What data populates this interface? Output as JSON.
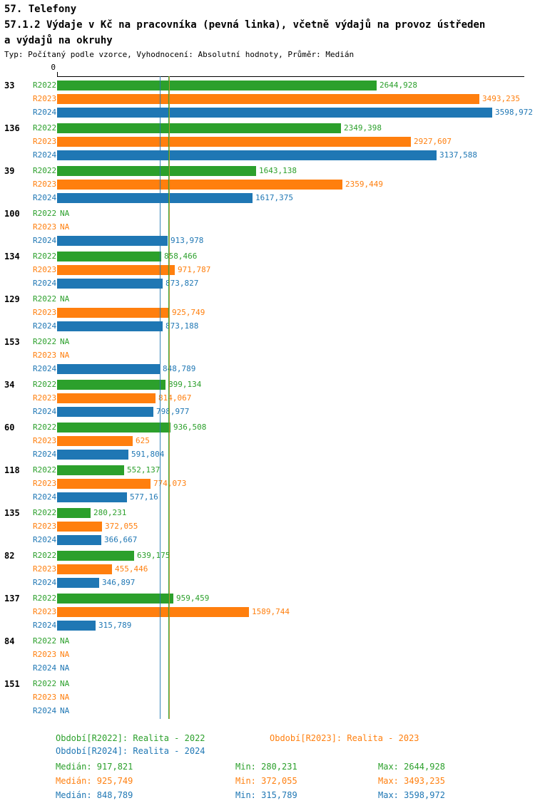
{
  "header": {
    "title": "57. Telefony",
    "subtitle_line1": "57.1.2 Výdaje v Kč na pracovníka (pevná linka), včetně výdajů na provoz ústředen",
    "subtitle_line2": "a výdajů na okruhy",
    "meta": "Typ: Počítaný podle vzorce, Vyhodnocení: Absolutní hodnoty, Průměr: Medián"
  },
  "chart_data": {
    "type": "bar",
    "orientation": "horizontal",
    "axis_zero_label": "0",
    "xmax": 3598.972,
    "series_names": [
      "R2022",
      "R2023",
      "R2024"
    ],
    "colors": {
      "R2022": "#2ca02c",
      "R2023": "#ff7f0e",
      "R2024": "#1f77b4"
    },
    "median_lines": [
      {
        "series": "R2024",
        "value": 848.789,
        "color": "#1f77b4"
      },
      {
        "series": "R2022",
        "value": 917.821,
        "color": "#2ca02c"
      },
      {
        "series": "R2023",
        "value": 925.749,
        "color": "#b5952b"
      }
    ],
    "groups": [
      {
        "id": "33",
        "bars": [
          {
            "series": "R2022",
            "value": 2644.928,
            "label": "2644,928"
          },
          {
            "series": "R2023",
            "value": 3493.235,
            "label": "3493,235"
          },
          {
            "series": "R2024",
            "value": 3598.972,
            "label": "3598,972"
          }
        ]
      },
      {
        "id": "136",
        "bars": [
          {
            "series": "R2022",
            "value": 2349.398,
            "label": "2349,398"
          },
          {
            "series": "R2023",
            "value": 2927.607,
            "label": "2927,607"
          },
          {
            "series": "R2024",
            "value": 3137.588,
            "label": "3137,588"
          }
        ]
      },
      {
        "id": "39",
        "bars": [
          {
            "series": "R2022",
            "value": 1643.138,
            "label": "1643,138"
          },
          {
            "series": "R2023",
            "value": 2359.449,
            "label": "2359,449"
          },
          {
            "series": "R2024",
            "value": 1617.375,
            "label": "1617,375"
          }
        ]
      },
      {
        "id": "100",
        "bars": [
          {
            "series": "R2022",
            "value": null,
            "label": "NA"
          },
          {
            "series": "R2023",
            "value": null,
            "label": "NA"
          },
          {
            "series": "R2024",
            "value": 913.978,
            "label": "913,978"
          }
        ]
      },
      {
        "id": "134",
        "bars": [
          {
            "series": "R2022",
            "value": 858.466,
            "label": "858,466"
          },
          {
            "series": "R2023",
            "value": 971.787,
            "label": "971,787"
          },
          {
            "series": "R2024",
            "value": 873.827,
            "label": "873,827"
          }
        ]
      },
      {
        "id": "129",
        "bars": [
          {
            "series": "R2022",
            "value": null,
            "label": "NA"
          },
          {
            "series": "R2023",
            "value": 925.749,
            "label": "925,749"
          },
          {
            "series": "R2024",
            "value": 873.188,
            "label": "873,188"
          }
        ]
      },
      {
        "id": "153",
        "bars": [
          {
            "series": "R2022",
            "value": null,
            "label": "NA"
          },
          {
            "series": "R2023",
            "value": null,
            "label": "NA"
          },
          {
            "series": "R2024",
            "value": 848.789,
            "label": "848,789"
          }
        ]
      },
      {
        "id": "34",
        "bars": [
          {
            "series": "R2022",
            "value": 899.134,
            "label": "899,134"
          },
          {
            "series": "R2023",
            "value": 814.067,
            "label": "814,067"
          },
          {
            "series": "R2024",
            "value": 798.977,
            "label": "798,977"
          }
        ]
      },
      {
        "id": "60",
        "bars": [
          {
            "series": "R2022",
            "value": 936.508,
            "label": "936,508"
          },
          {
            "series": "R2023",
            "value": 625,
            "label": "625"
          },
          {
            "series": "R2024",
            "value": 591.804,
            "label": "591,804"
          }
        ]
      },
      {
        "id": "118",
        "bars": [
          {
            "series": "R2022",
            "value": 552.137,
            "label": "552,137"
          },
          {
            "series": "R2023",
            "value": 774.073,
            "label": "774,073"
          },
          {
            "series": "R2024",
            "value": 577.16,
            "label": "577,16"
          }
        ]
      },
      {
        "id": "135",
        "bars": [
          {
            "series": "R2022",
            "value": 280.231,
            "label": "280,231"
          },
          {
            "series": "R2023",
            "value": 372.055,
            "label": "372,055"
          },
          {
            "series": "R2024",
            "value": 366.667,
            "label": "366,667"
          }
        ]
      },
      {
        "id": "82",
        "bars": [
          {
            "series": "R2022",
            "value": 639.175,
            "label": "639,175"
          },
          {
            "series": "R2023",
            "value": 455.446,
            "label": "455,446"
          },
          {
            "series": "R2024",
            "value": 346.897,
            "label": "346,897"
          }
        ]
      },
      {
        "id": "137",
        "bars": [
          {
            "series": "R2022",
            "value": 959.459,
            "label": "959,459"
          },
          {
            "series": "R2023",
            "value": 1589.744,
            "label": "1589,744"
          },
          {
            "series": "R2024",
            "value": 315.789,
            "label": "315,789"
          }
        ]
      },
      {
        "id": "84",
        "bars": [
          {
            "series": "R2022",
            "value": null,
            "label": "NA"
          },
          {
            "series": "R2023",
            "value": null,
            "label": "NA"
          },
          {
            "series": "R2024",
            "value": null,
            "label": "NA"
          }
        ]
      },
      {
        "id": "151",
        "bars": [
          {
            "series": "R2022",
            "value": null,
            "label": "NA"
          },
          {
            "series": "R2023",
            "value": null,
            "label": "NA"
          },
          {
            "series": "R2024",
            "value": null,
            "label": "NA"
          }
        ]
      }
    ]
  },
  "legend": {
    "items": [
      {
        "label": "Období[R2022]: Realita - 2022",
        "color": "#2ca02c"
      },
      {
        "label": "Období[R2023]: Realita - 2023",
        "color": "#ff7f0e"
      },
      {
        "label": "Období[R2024]: Realita - 2024",
        "color": "#1f77b4"
      }
    ]
  },
  "stats": {
    "rows": [
      {
        "median": "Medián: 917,821",
        "min": "Min: 280,231",
        "max": "Max: 2644,928",
        "color": "#2ca02c"
      },
      {
        "median": "Medián: 925,749",
        "min": "Min: 372,055",
        "max": "Max: 3493,235",
        "color": "#ff7f0e"
      },
      {
        "median": "Medián: 848,789",
        "min": "Min: 315,789",
        "max": "Max: 3598,972",
        "color": "#1f77b4"
      }
    ]
  }
}
